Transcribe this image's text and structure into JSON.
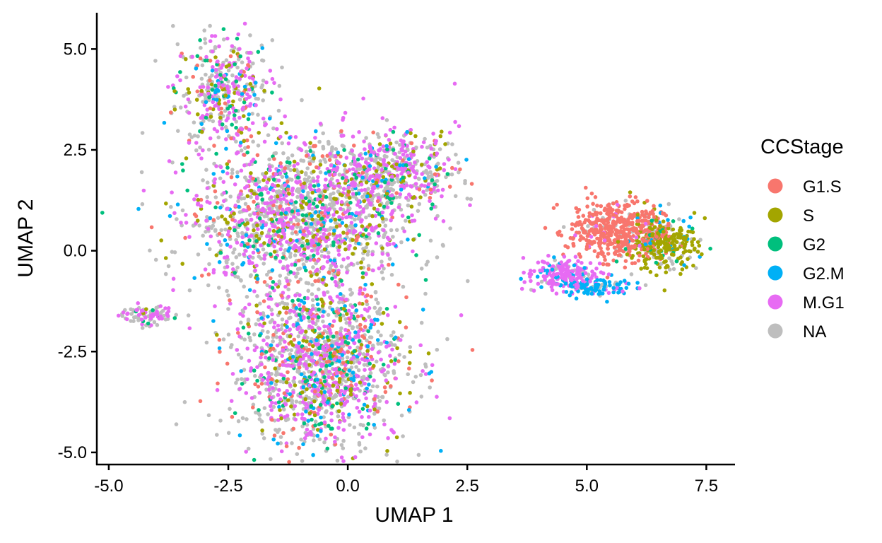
{
  "chart_data": {
    "type": "scatter",
    "title": "",
    "xlabel": "UMAP 1",
    "ylabel": "UMAP 2",
    "xlim": [
      -5.25,
      8.1
    ],
    "ylim": [
      -5.3,
      5.9
    ],
    "x_ticks": [
      -5.0,
      -2.5,
      0.0,
      2.5,
      5.0,
      7.5
    ],
    "x_tick_labels": [
      "-5.0",
      "-2.5",
      "0.0",
      "2.5",
      "5.0",
      "7.5"
    ],
    "y_ticks": [
      -5.0,
      -2.5,
      0.0,
      2.5,
      5.0
    ],
    "y_tick_labels": [
      "-5.0",
      "-2.5",
      "0.0",
      "2.5",
      "5.0"
    ],
    "grid": false,
    "legend": {
      "title": "CCStage",
      "placement": "right",
      "entries": [
        {
          "label": "G1.S",
          "color": "#F8766D"
        },
        {
          "label": "S",
          "color": "#A3A500"
        },
        {
          "label": "G2",
          "color": "#00BF7D"
        },
        {
          "label": "G2.M",
          "color": "#00B0F6"
        },
        {
          "label": "M.G1",
          "color": "#E76BF3"
        },
        {
          "label": "NA",
          "color": "#BEBEBE"
        }
      ]
    },
    "clusters": [
      {
        "name_hint": "left-island",
        "center": [
          -4.2,
          -1.6
        ],
        "spread": [
          0.3,
          0.12
        ],
        "approx_points": 90,
        "composition": {
          "NA": 0.5,
          "M.G1": 0.3,
          "G2": 0.07,
          "G2.M": 0.08,
          "S": 0.05
        }
      },
      {
        "name_hint": "top-island",
        "center": [
          -2.6,
          4.0
        ],
        "spread": [
          0.5,
          0.7
        ],
        "approx_points": 420,
        "composition": {
          "NA": 0.4,
          "M.G1": 0.3,
          "S": 0.12,
          "G2": 0.08,
          "G1.S": 0.05,
          "G2.M": 0.05
        }
      },
      {
        "name_hint": "main-body-upper",
        "center": [
          -1.0,
          0.8
        ],
        "spread": [
          1.1,
          0.9
        ],
        "approx_points": 1600,
        "composition": {
          "NA": 0.42,
          "M.G1": 0.28,
          "S": 0.1,
          "G2": 0.07,
          "G1.S": 0.07,
          "G2.M": 0.06
        }
      },
      {
        "name_hint": "main-body-arm",
        "center": [
          0.9,
          2.0
        ],
        "spread": [
          0.7,
          0.5
        ],
        "approx_points": 520,
        "composition": {
          "NA": 0.4,
          "M.G1": 0.35,
          "S": 0.1,
          "G2": 0.06,
          "G1.S": 0.05,
          "G2.M": 0.04
        }
      },
      {
        "name_hint": "main-body-lower",
        "center": [
          -0.6,
          -2.8
        ],
        "spread": [
          0.9,
          1.0
        ],
        "approx_points": 1500,
        "composition": {
          "NA": 0.4,
          "M.G1": 0.28,
          "G1.S": 0.1,
          "S": 0.08,
          "G2": 0.07,
          "G2.M": 0.07
        }
      },
      {
        "name_hint": "right-G1S-core",
        "center": [
          5.6,
          0.5
        ],
        "spread": [
          0.5,
          0.35
        ],
        "approx_points": 500,
        "composition": {
          "G1.S": 0.9,
          "M.G1": 0.05,
          "NA": 0.05
        }
      },
      {
        "name_hint": "right-S-arc",
        "center": [
          6.6,
          0.2
        ],
        "spread": [
          0.35,
          0.35
        ],
        "approx_points": 300,
        "composition": {
          "S": 0.6,
          "NA": 0.25,
          "G2": 0.07,
          "G2.M": 0.08
        }
      },
      {
        "name_hint": "right-MG1-tail",
        "center": [
          4.5,
          -0.6
        ],
        "spread": [
          0.4,
          0.2
        ],
        "approx_points": 200,
        "composition": {
          "M.G1": 0.7,
          "NA": 0.15,
          "G2.M": 0.15
        }
      },
      {
        "name_hint": "right-G2M-bottom",
        "center": [
          5.2,
          -0.9
        ],
        "spread": [
          0.35,
          0.12
        ],
        "approx_points": 120,
        "composition": {
          "G2.M": 0.6,
          "NA": 0.25,
          "M.G1": 0.15
        }
      }
    ]
  }
}
